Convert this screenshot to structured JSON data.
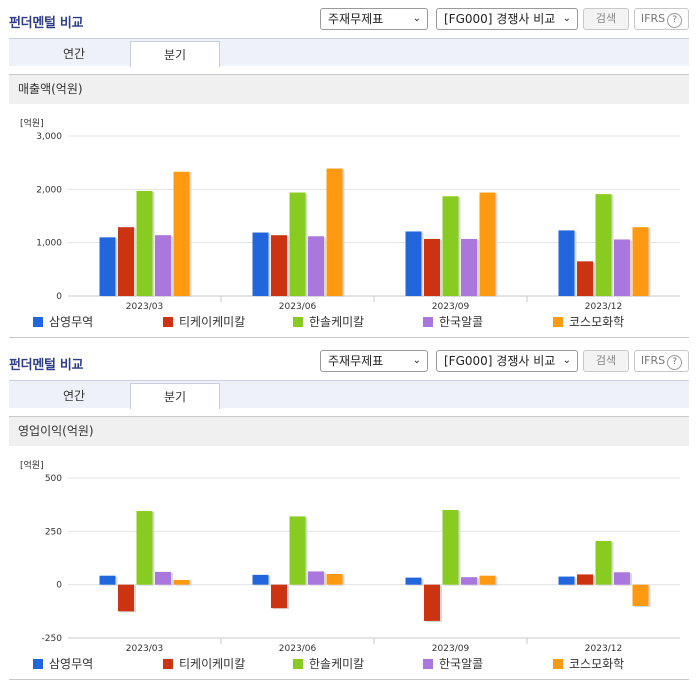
{
  "panels": [
    {
      "header_title": "펀더멘털 비교",
      "select1": "주재무제표",
      "select2": "[FG000] 경쟁사 비교",
      "search_label": "검색",
      "ifrs_label": "IFRS",
      "tabs": [
        "연간",
        "분기"
      ],
      "active_tab": "분기",
      "subtitle": "매출액(억원)",
      "unit_label": "[억원]"
    },
    {
      "header_title": "펀더멘털 비교",
      "select1": "주재무제표",
      "select2": "[FG000] 경쟁사 비교",
      "search_label": "검색",
      "ifrs_label": "IFRS",
      "tabs": [
        "연간",
        "분기"
      ],
      "active_tab": "분기",
      "subtitle": "영업이익(억원)",
      "unit_label": "[억원]"
    }
  ],
  "chart_data": [
    {
      "type": "bar",
      "title": "매출액(억원)",
      "ylabel": "[억원]",
      "ylim": [
        0,
        3000
      ],
      "yticks": [
        "3,000",
        "2,000",
        "1,000",
        "0"
      ],
      "ytick_values": [
        3000,
        2000,
        1000,
        0
      ],
      "categories": [
        "2023/03",
        "2023/06",
        "2023/09",
        "2023/12"
      ],
      "legend_position": "bottom",
      "series": [
        {
          "name": "삼영무역",
          "color": "#2266dd",
          "values": [
            1100,
            1190,
            1210,
            1230
          ]
        },
        {
          "name": "티케이케미칼",
          "color": "#cc3311",
          "values": [
            1290,
            1140,
            1070,
            650
          ]
        },
        {
          "name": "한솔케미칼",
          "color": "#88cc22",
          "values": [
            1970,
            1940,
            1870,
            1910
          ]
        },
        {
          "name": "한국알콜",
          "color": "#aa77dd",
          "values": [
            1140,
            1120,
            1070,
            1060
          ]
        },
        {
          "name": "코스모화학",
          "color": "#ff9911",
          "values": [
            2330,
            2390,
            1940,
            1290
          ]
        }
      ]
    },
    {
      "type": "bar",
      "title": "영업이익(억원)",
      "ylabel": "[억원]",
      "ylim": [
        -250,
        500
      ],
      "yticks": [
        "500",
        "250",
        "0",
        "-250"
      ],
      "ytick_values": [
        500,
        250,
        0,
        -250
      ],
      "categories": [
        "2023/03",
        "2023/06",
        "2023/09",
        "2023/12"
      ],
      "legend_position": "bottom",
      "series": [
        {
          "name": "삼영무역",
          "color": "#2266dd",
          "values": [
            42,
            46,
            33,
            38
          ]
        },
        {
          "name": "티케이케미칼",
          "color": "#cc3311",
          "values": [
            -125,
            -110,
            -170,
            48
          ]
        },
        {
          "name": "한솔케미칼",
          "color": "#88cc22",
          "values": [
            345,
            320,
            350,
            205
          ]
        },
        {
          "name": "한국알콜",
          "color": "#aa77dd",
          "values": [
            60,
            62,
            35,
            58
          ]
        },
        {
          "name": "코스모화학",
          "color": "#ff9911",
          "values": [
            22,
            50,
            42,
            -100
          ]
        }
      ]
    }
  ]
}
